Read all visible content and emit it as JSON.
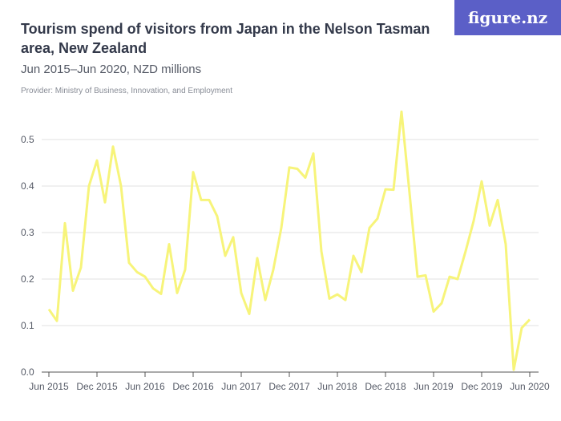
{
  "header": {
    "title": "Tourism spend of visitors from Japan in the Nelson Tasman area, New Zealand",
    "subtitle": "Jun 2015–Jun 2020, NZD millions",
    "provider": "Provider: Ministry of Business, Innovation, and Employment",
    "logo": "figure.nz"
  },
  "chart_data": {
    "type": "line",
    "title": "Tourism spend of visitors from Japan in the Nelson Tasman area, New Zealand",
    "subtitle": "Jun 2015–Jun 2020, NZD millions",
    "ylim": [
      0,
      0.5
    ],
    "yticks": [
      "0.0",
      "0.1",
      "0.2",
      "0.3",
      "0.4",
      "0.5"
    ],
    "xticks": [
      "Jun 2015",
      "Dec 2015",
      "Jun 2016",
      "Dec 2016",
      "Jun 2017",
      "Dec 2017",
      "Jun 2018",
      "Dec 2018",
      "Jun 2019",
      "Dec 2019",
      "Jun 2020"
    ],
    "x_start": "Jun 2015",
    "x_end": "Jun 2020",
    "frequency": "monthly",
    "grid": true,
    "line_color": "#f7f47a",
    "values": [
      0.135,
      0.11,
      0.32,
      0.175,
      0.225,
      0.4,
      0.455,
      0.365,
      0.485,
      0.4,
      0.235,
      0.215,
      0.205,
      0.18,
      0.168,
      0.275,
      0.17,
      0.22,
      0.43,
      0.37,
      0.37,
      0.335,
      0.25,
      0.29,
      0.17,
      0.125,
      0.245,
      0.155,
      0.22,
      0.31,
      0.44,
      0.437,
      0.418,
      0.47,
      0.26,
      0.158,
      0.167,
      0.155,
      0.25,
      0.215,
      0.31,
      0.33,
      0.393,
      0.392,
      0.56,
      0.385,
      0.205,
      0.208,
      0.13,
      0.148,
      0.205,
      0.2,
      0.26,
      0.325,
      0.41,
      0.315,
      0.37,
      0.275,
      0.005,
      0.095,
      0.113
    ]
  }
}
